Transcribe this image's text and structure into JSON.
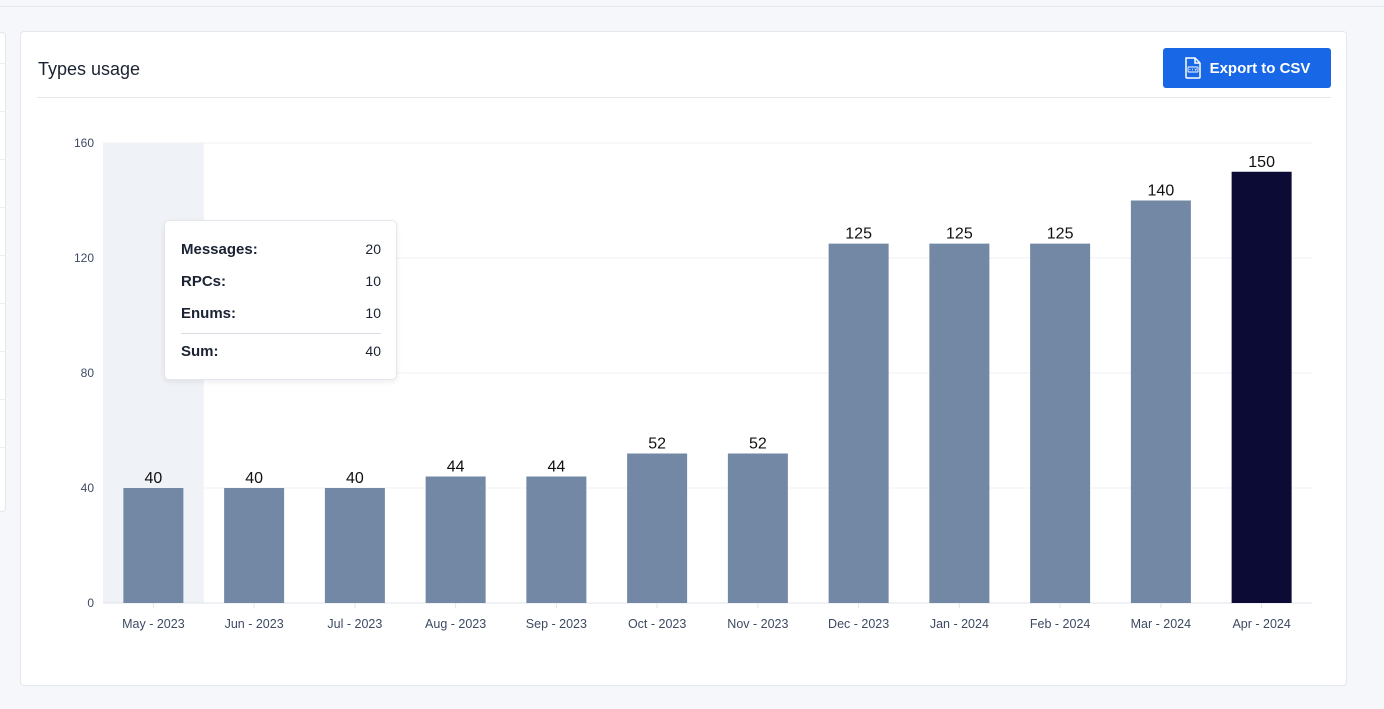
{
  "card": {
    "title": "Types usage",
    "export_label": "Export to CSV",
    "export_icon": "csv-file-icon"
  },
  "tooltip": {
    "rows": [
      {
        "label": "Messages:",
        "value": "20"
      },
      {
        "label": "RPCs:",
        "value": "10"
      },
      {
        "label": "Enums:",
        "value": "10"
      }
    ],
    "sum": {
      "label": "Sum:",
      "value": "40"
    }
  },
  "chart_data": {
    "type": "bar",
    "title": "",
    "xlabel": "",
    "ylabel": "",
    "categories": [
      "May - 2023",
      "Jun - 2023",
      "Jul - 2023",
      "Aug - 2023",
      "Sep - 2023",
      "Oct - 2023",
      "Nov - 2023",
      "Dec - 2023",
      "Jan - 2024",
      "Feb - 2024",
      "Mar - 2024",
      "Apr - 2024"
    ],
    "values": [
      40,
      40,
      40,
      44,
      44,
      52,
      52,
      125,
      125,
      125,
      140,
      150
    ],
    "yticks": [
      0,
      40,
      80,
      120,
      160
    ],
    "ylim": [
      0,
      160
    ],
    "grid": true,
    "hovered_index": 0,
    "highlight_index": 11,
    "colors": {
      "bar": "#7388a5",
      "highlight_bar": "#0b0b36",
      "hover_band": "#eff2f6",
      "grid": "#f0f2f5",
      "axis": "#dfe3ea",
      "tick_label": "#3d4a63",
      "value_label": "#111111"
    }
  }
}
